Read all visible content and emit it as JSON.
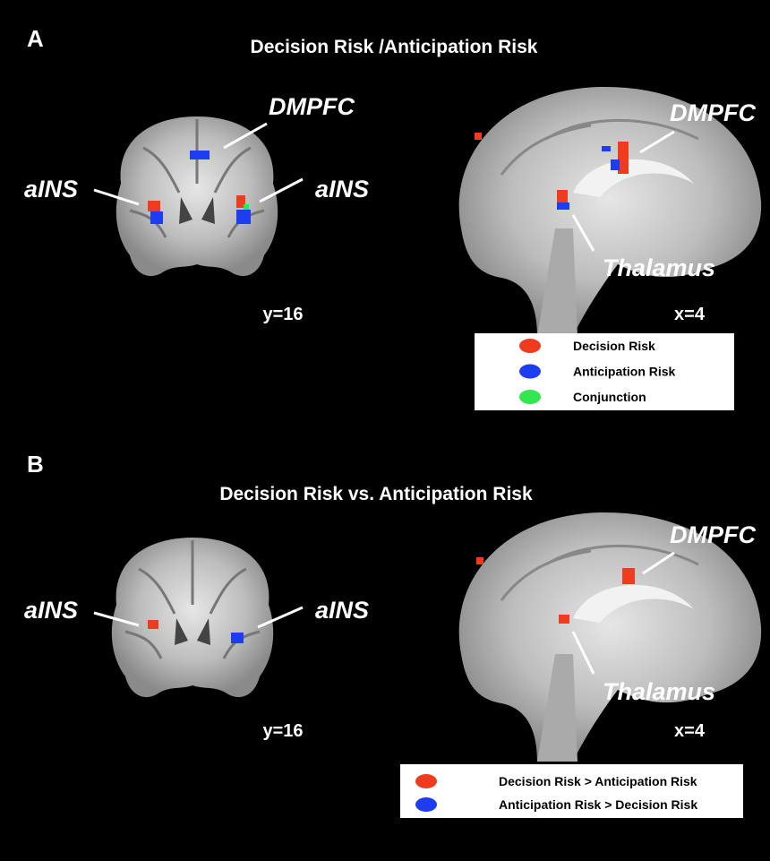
{
  "panels": [
    {
      "letter": "A",
      "title": "Decision Risk /Anticipation Risk",
      "coronal": {
        "labels": [
          "DMPFC",
          "aINS",
          "aINS"
        ],
        "slice": "y=16"
      },
      "sagittal": {
        "labels": [
          "DMPFC",
          "Thalamus"
        ],
        "slice": "x=4"
      },
      "legend": [
        {
          "label": "Decision Risk",
          "color": "#f03c1e"
        },
        {
          "label": "Anticipation Risk",
          "color": "#1e3cf0"
        },
        {
          "label": "Conjunction",
          "color": "#32e650"
        }
      ]
    },
    {
      "letter": "B",
      "title": "Decision Risk  vs. Anticipation Risk",
      "coronal": {
        "labels": [
          "aINS",
          "aINS"
        ],
        "slice": "y=16"
      },
      "sagittal": {
        "labels": [
          "DMPFC",
          "Thalamus"
        ],
        "slice": "x=4"
      },
      "legend": [
        {
          "label": "Decision Risk > Anticipation Risk",
          "color": "#f03c1e"
        },
        {
          "label": "Anticipation Risk > Decision Risk",
          "color": "#1e3cf0"
        }
      ]
    }
  ]
}
